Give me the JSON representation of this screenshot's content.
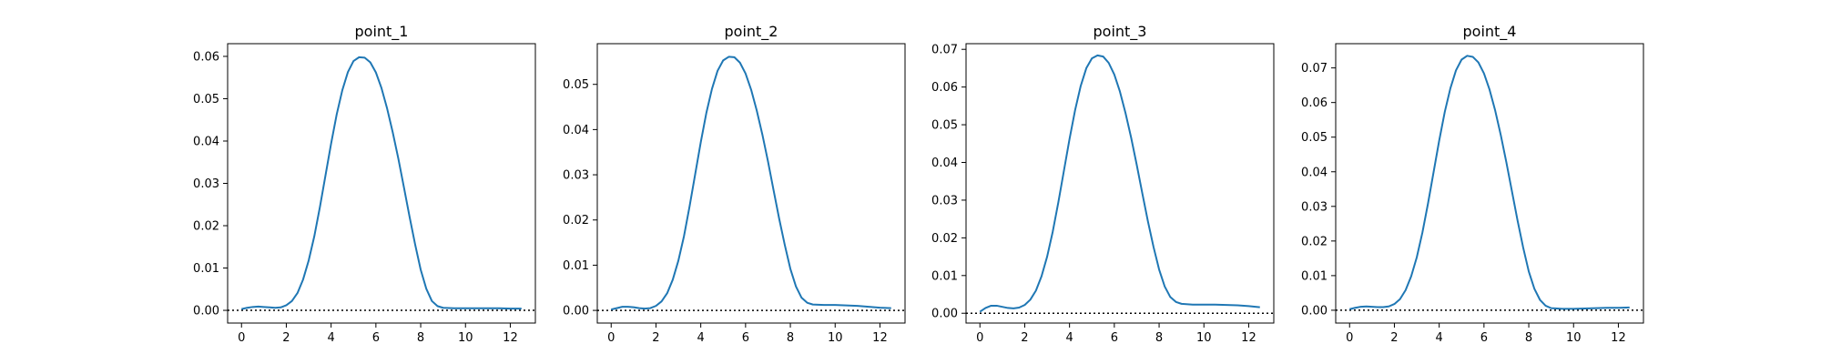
{
  "chart_data": [
    {
      "type": "line",
      "title": "point_1",
      "xlabel": "",
      "ylabel": "",
      "xlim": [
        -0.62,
        13.12
      ],
      "ylim": [
        -0.003,
        0.063
      ],
      "xticks": [
        0,
        2,
        4,
        6,
        8,
        10,
        12
      ],
      "yticks": [
        0.0,
        0.01,
        0.02,
        0.03,
        0.04,
        0.05,
        0.06
      ],
      "ytick_labels": [
        "0.00",
        "0.01",
        "0.02",
        "0.03",
        "0.04",
        "0.05",
        "0.06"
      ],
      "grid": false,
      "baseline": 0,
      "series": [
        {
          "x": [
            0,
            0.25,
            0.5,
            0.75,
            1,
            1.25,
            1.5,
            1.75,
            2,
            2.25,
            2.5,
            2.75,
            3,
            3.25,
            3.5,
            3.75,
            4,
            4.25,
            4.5,
            4.75,
            5,
            5.25,
            5.5,
            5.75,
            6,
            6.25,
            6.5,
            6.75,
            7,
            7.25,
            7.5,
            7.75,
            8,
            8.25,
            8.5,
            8.75,
            9,
            9.5,
            10,
            10.5,
            11,
            11.5,
            12,
            12.5
          ],
          "y": [
            0.0003,
            0.0006,
            0.0008,
            0.0009,
            0.0008,
            0.0007,
            0.0006,
            0.0007,
            0.0012,
            0.0022,
            0.0041,
            0.0073,
            0.0118,
            0.0175,
            0.0244,
            0.0319,
            0.0394,
            0.0463,
            0.052,
            0.0563,
            0.0589,
            0.0598,
            0.0597,
            0.0586,
            0.0562,
            0.0525,
            0.0477,
            0.0421,
            0.0359,
            0.0291,
            0.0222,
            0.0156,
            0.0096,
            0.0051,
            0.0022,
            0.001,
            0.0006,
            0.0005,
            0.0005,
            0.0005,
            0.0005,
            0.0005,
            0.0004,
            0.0004
          ]
        }
      ]
    },
    {
      "type": "line",
      "title": "point_2",
      "xlabel": "",
      "ylabel": "",
      "xlim": [
        -0.62,
        13.12
      ],
      "ylim": [
        -0.0028,
        0.059
      ],
      "xticks": [
        0,
        2,
        4,
        6,
        8,
        10,
        12
      ],
      "yticks": [
        0.0,
        0.01,
        0.02,
        0.03,
        0.04,
        0.05
      ],
      "ytick_labels": [
        "0.00",
        "0.01",
        "0.02",
        "0.03",
        "0.04",
        "0.05"
      ],
      "grid": false,
      "baseline": 0,
      "series": [
        {
          "x": [
            0,
            0.25,
            0.5,
            0.75,
            1,
            1.25,
            1.5,
            1.75,
            2,
            2.25,
            2.5,
            2.75,
            3,
            3.25,
            3.5,
            3.75,
            4,
            4.25,
            4.5,
            4.75,
            5,
            5.25,
            5.5,
            5.75,
            6,
            6.25,
            6.5,
            6.75,
            7,
            7.25,
            7.5,
            7.75,
            8,
            8.25,
            8.5,
            8.75,
            9,
            9.5,
            10,
            10.5,
            11,
            11.5,
            12,
            12.5
          ],
          "y": [
            0.0002,
            0.0005,
            0.0008,
            0.0008,
            0.0007,
            0.0005,
            0.0004,
            0.0005,
            0.001,
            0.002,
            0.0038,
            0.0068,
            0.011,
            0.0164,
            0.023,
            0.0301,
            0.0372,
            0.0437,
            0.049,
            0.053,
            0.0553,
            0.0561,
            0.056,
            0.0548,
            0.0524,
            0.0488,
            0.0442,
            0.0389,
            0.033,
            0.0266,
            0.0203,
            0.0145,
            0.0092,
            0.0053,
            0.0028,
            0.0017,
            0.0013,
            0.0012,
            0.0012,
            0.0011,
            0.001,
            0.0008,
            0.0006,
            0.0005
          ]
        }
      ]
    },
    {
      "type": "line",
      "title": "point_3",
      "xlabel": "",
      "ylabel": "",
      "xlim": [
        -0.62,
        13.12
      ],
      "ylim": [
        -0.0026,
        0.0715
      ],
      "xticks": [
        0,
        2,
        4,
        6,
        8,
        10,
        12
      ],
      "yticks": [
        0.0,
        0.01,
        0.02,
        0.03,
        0.04,
        0.05,
        0.06,
        0.07
      ],
      "ytick_labels": [
        "0.00",
        "0.01",
        "0.02",
        "0.03",
        "0.04",
        "0.05",
        "0.06",
        "0.07"
      ],
      "grid": false,
      "baseline": 0,
      "series": [
        {
          "x": [
            0,
            0.25,
            0.5,
            0.75,
            1,
            1.25,
            1.5,
            1.75,
            2,
            2.25,
            2.5,
            2.75,
            3,
            3.25,
            3.5,
            3.75,
            4,
            4.25,
            4.5,
            4.75,
            5,
            5.25,
            5.5,
            5.75,
            6,
            6.25,
            6.5,
            6.75,
            7,
            7.25,
            7.5,
            7.75,
            8,
            8.25,
            8.5,
            8.75,
            9,
            9.5,
            10,
            10.5,
            11,
            11.5,
            12,
            12.5
          ],
          "y": [
            0.0004,
            0.0014,
            0.002,
            0.002,
            0.0017,
            0.0014,
            0.0013,
            0.0015,
            0.0022,
            0.0036,
            0.006,
            0.0098,
            0.015,
            0.0216,
            0.0294,
            0.0378,
            0.0462,
            0.0539,
            0.0603,
            0.065,
            0.0676,
            0.0684,
            0.0681,
            0.0664,
            0.0633,
            0.0588,
            0.0531,
            0.0466,
            0.0394,
            0.0318,
            0.0244,
            0.0176,
            0.0116,
            0.0071,
            0.0043,
            0.003,
            0.0025,
            0.0023,
            0.0023,
            0.0023,
            0.0022,
            0.0021,
            0.0019,
            0.0016
          ]
        }
      ]
    },
    {
      "type": "line",
      "title": "point_4",
      "xlabel": "",
      "ylabel": "",
      "xlim": [
        -0.62,
        13.12
      ],
      "ylim": [
        -0.0037,
        0.077
      ],
      "xticks": [
        0,
        2,
        4,
        6,
        8,
        10,
        12
      ],
      "yticks": [
        0.0,
        0.01,
        0.02,
        0.03,
        0.04,
        0.05,
        0.06,
        0.07
      ],
      "ytick_labels": [
        "0.00",
        "0.01",
        "0.02",
        "0.03",
        "0.04",
        "0.05",
        "0.06",
        "0.07"
      ],
      "grid": false,
      "baseline": 0,
      "series": [
        {
          "x": [
            0,
            0.25,
            0.5,
            0.75,
            1,
            1.25,
            1.5,
            1.75,
            2,
            2.25,
            2.5,
            2.75,
            3,
            3.25,
            3.5,
            3.75,
            4,
            4.25,
            4.5,
            4.75,
            5,
            5.25,
            5.5,
            5.75,
            6,
            6.25,
            6.5,
            6.75,
            7,
            7.25,
            7.5,
            7.75,
            8,
            8.25,
            8.5,
            8.75,
            9,
            9.5,
            10,
            10.5,
            11,
            11.5,
            12,
            12.5
          ],
          "y": [
            0.0003,
            0.0007,
            0.001,
            0.0011,
            0.001,
            0.0009,
            0.0009,
            0.0011,
            0.0018,
            0.0032,
            0.0058,
            0.0098,
            0.0153,
            0.0224,
            0.0308,
            0.0399,
            0.049,
            0.0573,
            0.0641,
            0.0693,
            0.0724,
            0.0735,
            0.0732,
            0.0716,
            0.0684,
            0.0637,
            0.0577,
            0.0506,
            0.0427,
            0.0343,
            0.0259,
            0.0181,
            0.0112,
            0.0062,
            0.003,
            0.0013,
            0.0006,
            0.0004,
            0.0004,
            0.0005,
            0.0006,
            0.0007,
            0.0007,
            0.0008
          ]
        }
      ]
    }
  ],
  "colors": {
    "line": "#1f77b4",
    "axes": "#000000",
    "baseline": "#000000",
    "background": "#ffffff"
  }
}
